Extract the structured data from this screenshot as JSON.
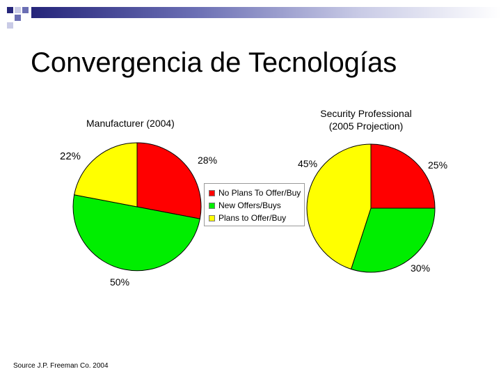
{
  "slide": {
    "title": "Convergencia de Tecnologías",
    "source": "Source J.P. Freeman Co. 2004",
    "accent_colors": [
      "#25257a",
      "#6b6fb4",
      "#c9cbe6"
    ]
  },
  "chart_data": [
    {
      "type": "pie",
      "title": "Manufacturer (2004)",
      "categories": [
        "No Plans To Offer/Buy",
        "New Offers/Buys",
        "Plans to Offer/Buy"
      ],
      "values": [
        28,
        50,
        22
      ],
      "value_labels": [
        "28%",
        "50%",
        "22%"
      ],
      "colors": [
        "#ff0000",
        "#00ee00",
        "#ffff00"
      ],
      "legend": "center"
    },
    {
      "type": "pie",
      "title": "Security Professional (2005 Projection)",
      "title_lines": [
        "Security Professional",
        "(2005 Projection)"
      ],
      "categories": [
        "No Plans To Offer/Buy",
        "New Offers/Buys",
        "Plans to Offer/Buy"
      ],
      "values": [
        25,
        30,
        45
      ],
      "value_labels": [
        "25%",
        "30%",
        "45%"
      ],
      "colors": [
        "#ff0000",
        "#00ee00",
        "#ffff00"
      ],
      "legend": "center"
    }
  ],
  "legend": {
    "items": [
      {
        "label": "No Plans To Offer/Buy",
        "color": "#ff0000"
      },
      {
        "label": "New Offers/Buys",
        "color": "#00ee00"
      },
      {
        "label": "Plans to Offer/Buy",
        "color": "#ffff00"
      }
    ]
  }
}
